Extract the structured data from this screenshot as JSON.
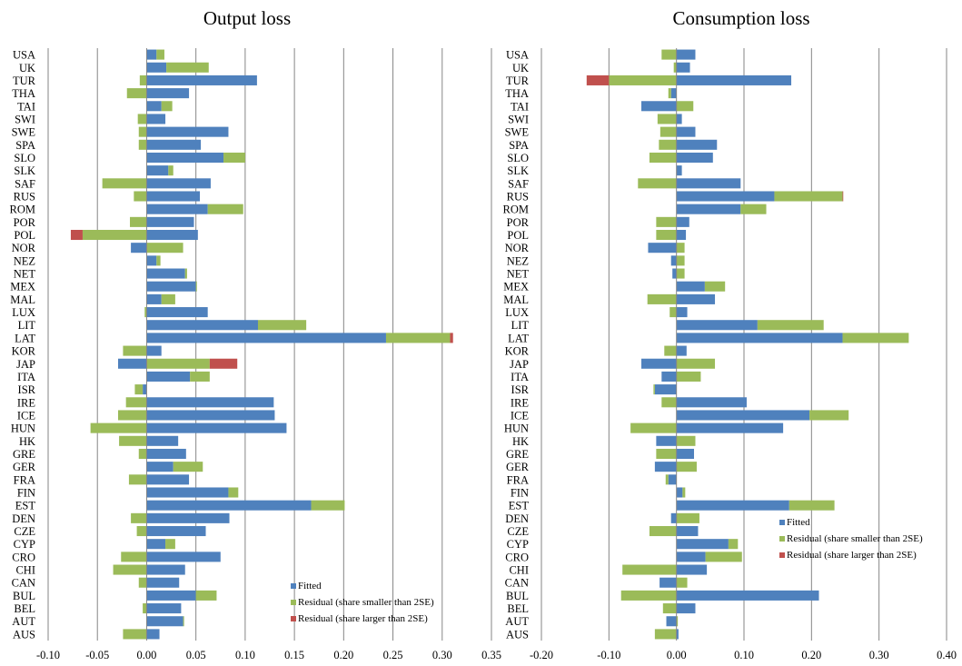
{
  "chart_data": [
    {
      "type": "bar",
      "title": "Output loss",
      "orientation": "horizontal",
      "stacked": true,
      "categories": [
        "USA",
        "UK",
        "TUR",
        "THA",
        "TAI",
        "SWI",
        "SWE",
        "SPA",
        "SLO",
        "SLK",
        "SAF",
        "RUS",
        "ROM",
        "POR",
        "POL",
        "NOR",
        "NEZ",
        "NET",
        "MEX",
        "MAL",
        "LUX",
        "LIT",
        "LAT",
        "KOR",
        "JAP",
        "ITA",
        "ISR",
        "IRE",
        "ICE",
        "HUN",
        "HK",
        "GRE",
        "GER",
        "FRA",
        "FIN",
        "EST",
        "DEN",
        "CZE",
        "CYP",
        "CRO",
        "CHI",
        "CAN",
        "BUL",
        "BEL",
        "AUT",
        "AUS"
      ],
      "series": [
        {
          "name": "Fitted",
          "color": "#4f81bd",
          "values": [
            0.01,
            0.02,
            0.112,
            0.043,
            0.015,
            0.019,
            0.083,
            0.055,
            0.078,
            0.022,
            0.065,
            0.054,
            0.062,
            0.048,
            0.052,
            -0.016,
            0.01,
            0.039,
            0.05,
            0.015,
            0.062,
            0.113,
            0.243,
            0.015,
            -0.029,
            0.044,
            -0.004,
            0.129,
            0.13,
            0.142,
            0.032,
            0.04,
            0.027,
            0.043,
            0.083,
            0.167,
            0.084,
            0.06,
            0.019,
            0.075,
            0.039,
            0.033,
            0.05,
            0.035,
            0.037,
            0.013
          ]
        },
        {
          "name": "Residual (share smaller than 2SE)",
          "color": "#9bbb59",
          "values": [
            0.008,
            0.043,
            -0.007,
            -0.02,
            0.011,
            -0.009,
            -0.008,
            -0.008,
            0.022,
            0.005,
            -0.045,
            -0.013,
            0.036,
            -0.017,
            -0.065,
            0.037,
            0.004,
            0.002,
            0.001,
            0.014,
            -0.002,
            0.049,
            0.065,
            -0.024,
            0.064,
            0.02,
            -0.008,
            -0.021,
            -0.029,
            -0.057,
            -0.028,
            -0.008,
            0.03,
            -0.018,
            0.01,
            0.034,
            -0.016,
            -0.01,
            0.01,
            -0.026,
            -0.034,
            -0.008,
            0.021,
            -0.004,
            0.001,
            -0.024
          ]
        },
        {
          "name": "Residual (share larger than 2SE)",
          "color": "#c0504d",
          "values": [
            0,
            0,
            0,
            0,
            0,
            0,
            0,
            0,
            0,
            0,
            0,
            0,
            0,
            0,
            -0.012,
            0,
            0,
            0,
            0,
            0,
            0,
            0,
            0.003,
            0,
            0.028,
            0,
            0,
            0,
            0,
            0,
            0,
            0,
            0,
            0,
            0,
            0,
            0,
            0,
            0,
            0,
            0,
            0,
            0,
            0,
            0,
            0
          ]
        }
      ],
      "xlim": [
        -0.1,
        0.35
      ],
      "ticks": [
        "-0.10",
        "-0.05",
        "0.00",
        "0.05",
        "0.10",
        "0.15",
        "0.20",
        "0.25",
        "0.30",
        "0.35"
      ],
      "grid": true,
      "legend_position": "bottom-right"
    },
    {
      "type": "bar",
      "title": "Consumption loss",
      "orientation": "horizontal",
      "stacked": true,
      "categories": [
        "USA",
        "UK",
        "TUR",
        "THA",
        "TAI",
        "SWI",
        "SWE",
        "SPA",
        "SLO",
        "SLK",
        "SAF",
        "RUS",
        "ROM",
        "POR",
        "POL",
        "NOR",
        "NEZ",
        "NET",
        "MEX",
        "MAL",
        "LUX",
        "LIT",
        "LAT",
        "KOR",
        "JAP",
        "ITA",
        "ISR",
        "IRE",
        "ICE",
        "HUN",
        "HK",
        "GRE",
        "GER",
        "FRA",
        "FIN",
        "EST",
        "DEN",
        "CZE",
        "CYP",
        "CRO",
        "CHI",
        "CAN",
        "BUL",
        "BEL",
        "AUT",
        "AUS"
      ],
      "series": [
        {
          "name": "Fitted",
          "color": "#4f81bd",
          "values": [
            0.028,
            0.02,
            0.17,
            -0.008,
            -0.052,
            0.008,
            0.028,
            0.06,
            0.054,
            0.008,
            0.095,
            0.145,
            0.095,
            0.019,
            0.014,
            -0.042,
            -0.008,
            -0.006,
            0.042,
            0.057,
            0.016,
            0.12,
            0.246,
            0.015,
            -0.052,
            -0.022,
            -0.032,
            0.104,
            0.197,
            0.158,
            -0.03,
            0.026,
            -0.032,
            -0.012,
            0.009,
            0.167,
            -0.008,
            0.032,
            0.077,
            0.043,
            0.045,
            -0.025,
            0.211,
            0.028,
            -0.015,
            0.003
          ]
        },
        {
          "name": "Residual (share smaller than 2SE)",
          "color": "#9bbb59",
          "values": [
            -0.022,
            -0.004,
            -0.1,
            -0.004,
            0.025,
            -0.028,
            -0.024,
            -0.026,
            -0.04,
            0,
            -0.057,
            0.101,
            0.038,
            -0.03,
            -0.03,
            0.012,
            0.012,
            0.012,
            0.03,
            -0.043,
            -0.01,
            0.098,
            0.098,
            -0.018,
            0.057,
            0.036,
            -0.002,
            -0.022,
            0.058,
            -0.068,
            0.028,
            -0.03,
            0.03,
            -0.004,
            0.004,
            0.067,
            0.034,
            -0.04,
            0.014,
            0.054,
            -0.08,
            0.016,
            -0.082,
            -0.02,
            0.002,
            -0.032
          ]
        },
        {
          "name": "Residual (share larger than 2SE)",
          "color": "#c0504d",
          "values": [
            0,
            0,
            -0.033,
            0,
            0,
            0,
            0,
            0,
            0,
            0,
            0,
            0.001,
            0,
            0,
            0,
            0,
            0,
            0,
            0,
            0,
            0,
            0,
            0,
            0,
            0,
            0,
            0,
            0,
            0,
            0,
            0,
            0,
            0,
            0,
            0,
            0,
            0,
            0,
            0,
            0,
            0,
            0,
            0,
            0,
            0,
            0
          ]
        }
      ],
      "xlim": [
        -0.2,
        0.4
      ],
      "ticks": [
        "-0.20",
        "-0.10",
        "0.00",
        "0.10",
        "0.20",
        "0.30",
        "0.40"
      ],
      "grid": true,
      "legend_position": "center-right"
    }
  ]
}
